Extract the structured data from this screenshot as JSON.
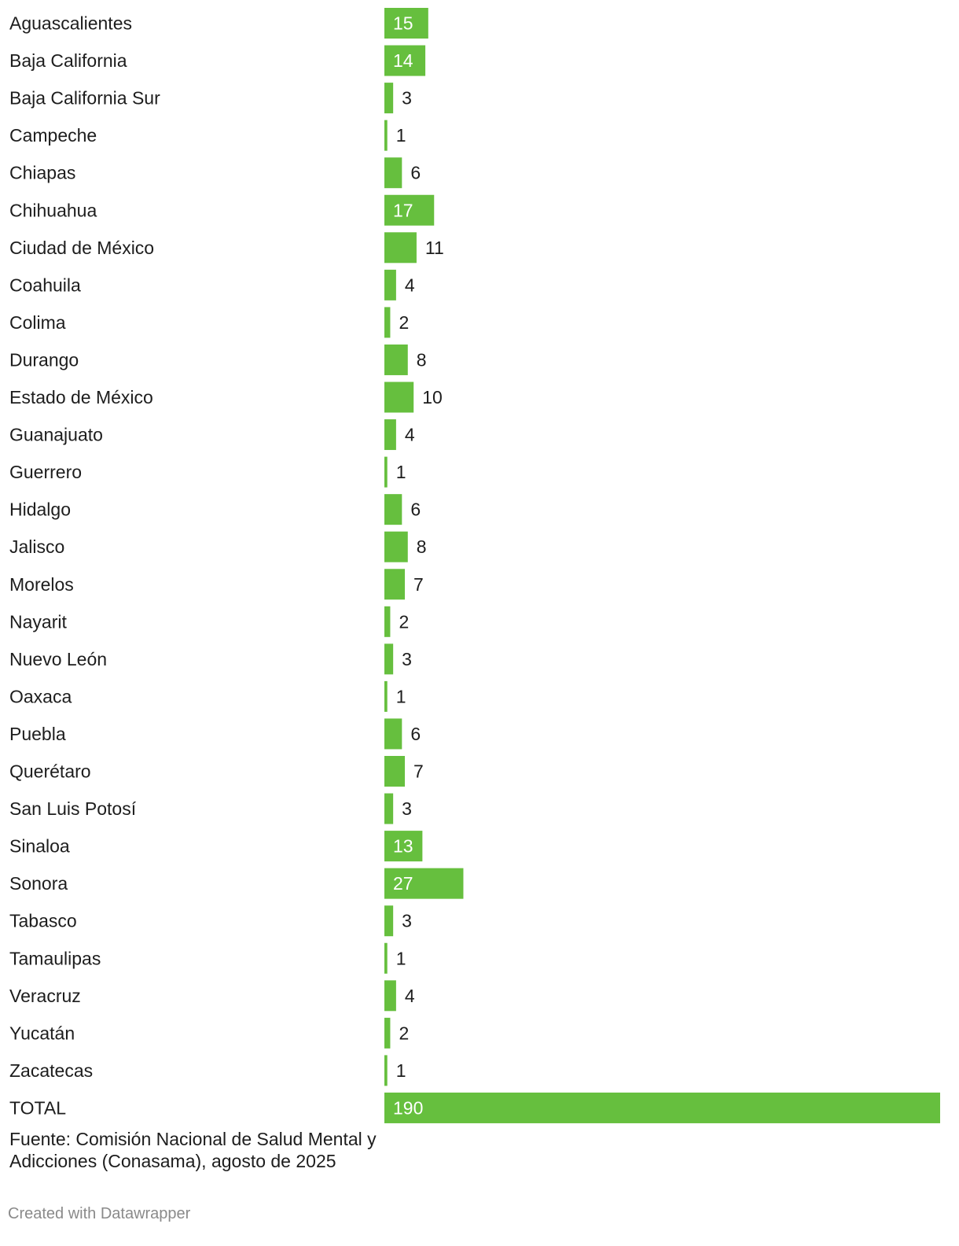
{
  "chart_data": {
    "type": "bar",
    "orientation": "horizontal",
    "categories": [
      "Aguascalientes",
      "Baja California",
      "Baja California Sur",
      "Campeche",
      "Chiapas",
      "Chihuahua",
      "Ciudad de México",
      "Coahuila",
      "Colima",
      "Durango",
      "Estado de México",
      "Guanajuato",
      "Guerrero",
      "Hidalgo",
      "Jalisco",
      "Morelos",
      "Nayarit",
      "Nuevo León",
      "Oaxaca",
      "Puebla",
      "Querétaro",
      "San Luis Potosí",
      "Sinaloa",
      "Sonora",
      "Tabasco",
      "Tamaulipas",
      "Veracruz",
      "Yucatán",
      "Zacatecas",
      "TOTAL"
    ],
    "values": [
      15,
      14,
      3,
      1,
      6,
      17,
      11,
      4,
      2,
      8,
      10,
      4,
      1,
      6,
      8,
      7,
      2,
      3,
      1,
      6,
      7,
      3,
      13,
      27,
      3,
      1,
      4,
      2,
      1,
      190
    ],
    "xlim": [
      0,
      190
    ],
    "title": "",
    "xlabel": "",
    "ylabel": "",
    "bar_color": "#66bf3e",
    "grid": false,
    "legend": "none"
  },
  "footer": {
    "source": "Fuente: Comisión Nacional de Salud Mental y Adicciones (Conasama), agosto de 2025",
    "credit": "Created with Datawrapper"
  }
}
